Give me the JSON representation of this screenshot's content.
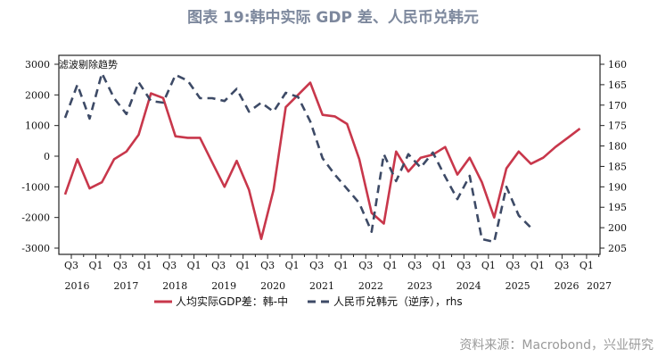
{
  "title": "图表 19:韩中实际 GDP 差、人民币兑韩元",
  "source": "资料来源：Macrobond，兴业研究",
  "chart_data": {
    "type": "line",
    "annotation": "滤波剔除趋势",
    "x_quarters": [
      "2016Q3",
      "2016Q4",
      "2017Q1",
      "2017Q2",
      "2017Q3",
      "2017Q4",
      "2018Q1",
      "2018Q2",
      "2018Q3",
      "2018Q4",
      "2019Q1",
      "2019Q2",
      "2019Q3",
      "2019Q4",
      "2020Q1",
      "2020Q2",
      "2020Q3",
      "2020Q4",
      "2021Q1",
      "2021Q2",
      "2021Q3",
      "2021Q4",
      "2022Q1",
      "2022Q2",
      "2022Q3",
      "2022Q4",
      "2023Q1",
      "2023Q2",
      "2023Q3",
      "2023Q4",
      "2024Q1",
      "2024Q2",
      "2024Q3",
      "2024Q4",
      "2025Q1",
      "2025Q2",
      "2025Q3",
      "2025Q4",
      "2026Q1",
      "2026Q2",
      "2026Q3",
      "2026Q4",
      "2027Q1"
    ],
    "x_tick_labels": [
      "Q3",
      "Q1",
      "Q3",
      "Q1",
      "Q3",
      "Q1",
      "Q3",
      "Q1",
      "Q3",
      "Q1",
      "Q3",
      "Q1",
      "Q3",
      "Q1",
      "Q3",
      "Q1",
      "Q3",
      "Q1",
      "Q3",
      "Q1",
      "Q3",
      "Q1"
    ],
    "x_year_labels": [
      "2016",
      "2017",
      "2018",
      "2019",
      "2020",
      "2021",
      "2022",
      "2023",
      "2024",
      "2025",
      "2026",
      "2027"
    ],
    "y_left": {
      "range": [
        -3000,
        3000
      ],
      "ticks": [
        "3000",
        "2000",
        "1000",
        "0",
        "-1000",
        "-2000",
        "-3000"
      ]
    },
    "y_right": {
      "range": [
        160,
        205
      ],
      "reversed": true,
      "ticks": [
        "160",
        "165",
        "170",
        "175",
        "180",
        "185",
        "190",
        "195",
        "200",
        "205"
      ]
    },
    "series": [
      {
        "name": "人均实际GDP差：韩-中",
        "axis": "left",
        "color": "#c8374b",
        "style": "solid",
        "values": [
          -1250,
          -100,
          -1050,
          -850,
          -100,
          150,
          700,
          2050,
          1900,
          650,
          600,
          600,
          -200,
          -1000,
          -150,
          -1100,
          -2700,
          -1100,
          1600,
          2000,
          2400,
          1350,
          1300,
          1050,
          -100,
          -1850,
          -2200,
          150,
          -500,
          -50,
          50,
          300,
          -600,
          -50,
          -850,
          -2000,
          -400,
          150,
          -250,
          -50,
          300,
          600,
          900
        ]
      },
      {
        "name": "人民币兑韩元（逆序），rhs",
        "axis": "right",
        "color": "#3d4a66",
        "style": "dashed",
        "values": [
          173.1,
          165,
          173.3,
          162.2,
          168.3,
          172.2,
          164.4,
          169,
          169.4,
          162.6,
          164,
          168.3,
          168.3,
          169,
          166,
          171.6,
          169.4,
          171.6,
          167,
          168,
          174,
          183,
          187,
          190.5,
          194,
          201,
          182,
          188.6,
          182,
          185.3,
          181.6,
          187.5,
          193,
          187.3,
          202.8,
          203.5,
          190,
          197,
          200
        ]
      }
    ]
  }
}
